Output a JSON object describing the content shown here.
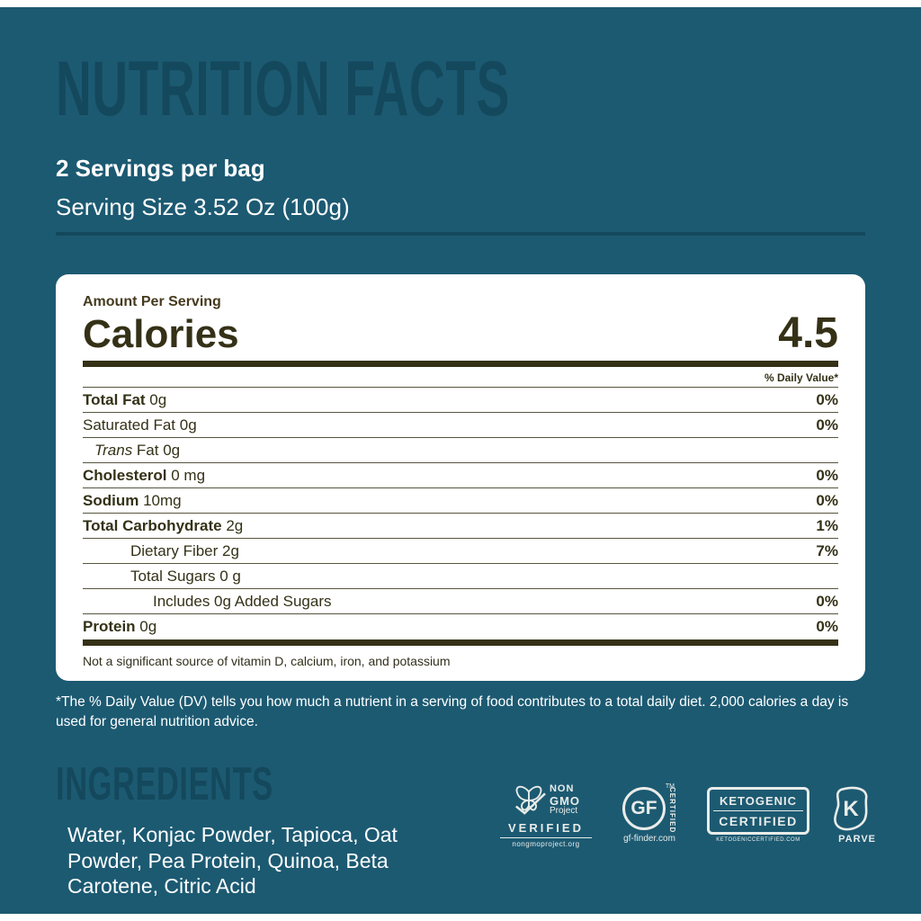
{
  "colors": {
    "background": "#1c5a72",
    "heading": "#14485c",
    "card_text": "#343117",
    "separator": "#58553f",
    "white": "#ffffff",
    "badge": "#e9ece9"
  },
  "header": {
    "title": "NUTRITION FACTS",
    "servings_per_bag": "2 Servings per bag",
    "serving_size": "Serving Size 3.52 Oz (100g)"
  },
  "label": {
    "amount_per_serving": "Amount Per Serving",
    "calories_label": "Calories",
    "calories_value": "4.5",
    "daily_value_header": "% Daily Value*",
    "rows": [
      {
        "name": "Total Fat",
        "amount": "0g",
        "dv": "0%",
        "bold": true,
        "indent": 0,
        "italic": ""
      },
      {
        "name": "Saturated Fat",
        "amount": "0g",
        "dv": "0%",
        "bold": false,
        "indent": 0,
        "italic": ""
      },
      {
        "name": "Fat",
        "amount": "0g",
        "dv": "",
        "bold": false,
        "indent": 1,
        "italic": "Trans"
      },
      {
        "name": "Cholesterol",
        "amount": "0 mg",
        "dv": "0%",
        "bold": true,
        "indent": 0,
        "italic": ""
      },
      {
        "name": "Sodium",
        "amount": "10mg",
        "dv": "0%",
        "bold": true,
        "indent": 0,
        "italic": ""
      },
      {
        "name": "Total Carbohydrate",
        "amount": "2g",
        "dv": "1%",
        "bold": true,
        "indent": 0,
        "italic": ""
      },
      {
        "name": "Dietary Fiber",
        "amount": "2g",
        "dv": "7%",
        "bold": false,
        "indent": 2,
        "italic": ""
      },
      {
        "name": "Total Sugars",
        "amount": "0 g",
        "dv": "",
        "bold": false,
        "indent": 2,
        "italic": ""
      },
      {
        "name": "Includes 0g Added Sugars",
        "amount": "",
        "dv": "0%",
        "bold": false,
        "indent": 3,
        "italic": ""
      },
      {
        "name": "Protein",
        "amount": "0g",
        "dv": "0%",
        "bold": true,
        "indent": 0,
        "italic": ""
      }
    ],
    "not_significant": "Not a significant source of vitamin D, calcium, iron, and potassium"
  },
  "footnote": "*The % Daily Value (DV) tells you how much a nutrient in a serving of food contributes to a total daily diet. 2,000 calories a day is used for general nutrition advice.",
  "ingredients": {
    "title": "INGREDIENTS",
    "list": "Water, Konjac Powder, Tapioca, Oat Powder, Pea Protein, Quinoa, Beta Carotene, Citric Acid"
  },
  "badges": {
    "non_gmo": {
      "top1": "NON",
      "top2": "GMO",
      "top3": "Project",
      "verified": "VERIFIED",
      "url": "nongmoproject.org"
    },
    "gf": {
      "initials": "GF",
      "tm": "TM",
      "certified": "CERTIFIED",
      "url": "gf-finder.com"
    },
    "keto": {
      "line1": "KETOGENIC",
      "line2": "CERTIFIED",
      "url": "KETOGENICCERTIFIED.COM"
    },
    "parve": {
      "letter": "K",
      "label": "PARVE"
    }
  }
}
